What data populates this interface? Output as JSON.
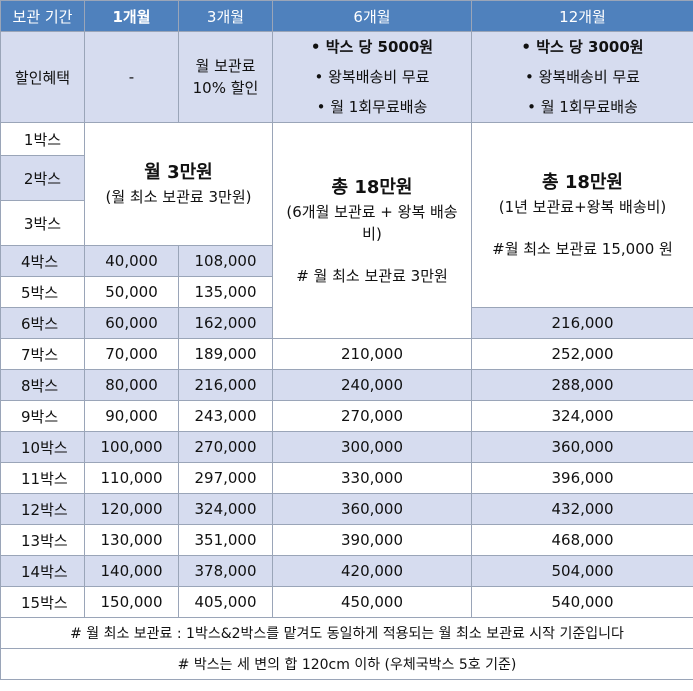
{
  "header": {
    "c0": "보관 기간",
    "c1": "1개월",
    "c2": "3개월",
    "c3": "6개월",
    "c4": "12개월"
  },
  "discount": {
    "label": "할인혜택",
    "m1": "-",
    "m3_line1": "월 보관료",
    "m3_line2": "10% 할인",
    "m6": [
      "• 박스 당 5000원",
      "• 왕복배송비 무료",
      "• 월 1회무료배송"
    ],
    "m12": [
      "• 박스 당 3000원",
      "• 왕복배송비 무료",
      "• 월 1회무료배송"
    ]
  },
  "merged": {
    "m13_title": "월 3만원",
    "m13_sub": "(월 최소 보관료 3만원)",
    "m6_title": "총 18만원",
    "m6_sub": "(6개월 보관료 + 왕복 배송비)",
    "m6_note": "# 월 최소 보관료 3만원",
    "m12_title": "총 18만원",
    "m12_sub": "(1년 보관료+왕복 배송비)",
    "m12_note": "#월 최소 보관료 15,000 원"
  },
  "rows": [
    {
      "label": "1박스"
    },
    {
      "label": "2박스"
    },
    {
      "label": "3박스"
    },
    {
      "label": "4박스",
      "m1": "40,000",
      "m3": "108,000"
    },
    {
      "label": "5박스",
      "m1": "50,000",
      "m3": "135,000"
    },
    {
      "label": "6박스",
      "m1": "60,000",
      "m3": "162,000",
      "m12": "216,000"
    },
    {
      "label": "7박스",
      "m1": "70,000",
      "m3": "189,000",
      "m6": "210,000",
      "m12": "252,000"
    },
    {
      "label": "8박스",
      "m1": "80,000",
      "m3": "216,000",
      "m6": "240,000",
      "m12": "288,000"
    },
    {
      "label": "9박스",
      "m1": "90,000",
      "m3": "243,000",
      "m6": "270,000",
      "m12": "324,000"
    },
    {
      "label": "10박스",
      "m1": "100,000",
      "m3": "270,000",
      "m6": "300,000",
      "m12": "360,000"
    },
    {
      "label": "11박스",
      "m1": "110,000",
      "m3": "297,000",
      "m6": "330,000",
      "m12": "396,000"
    },
    {
      "label": "12박스",
      "m1": "120,000",
      "m3": "324,000",
      "m6": "360,000",
      "m12": "432,000"
    },
    {
      "label": "13박스",
      "m1": "130,000",
      "m3": "351,000",
      "m6": "390,000",
      "m12": "468,000"
    },
    {
      "label": "14박스",
      "m1": "140,000",
      "m3": "378,000",
      "m6": "420,000",
      "m12": "504,000"
    },
    {
      "label": "15박스",
      "m1": "150,000",
      "m3": "405,000",
      "m6": "450,000",
      "m12": "540,000"
    }
  ],
  "notes": [
    "# 월 최소 보관료 : 1박스&2박스를 맡겨도 동일하게 적용되는 월 최소 보관료 시작 기준입니다",
    "# 박스는 세 변의 합 120cm 이하 (우체국박스 5호 기준)"
  ]
}
